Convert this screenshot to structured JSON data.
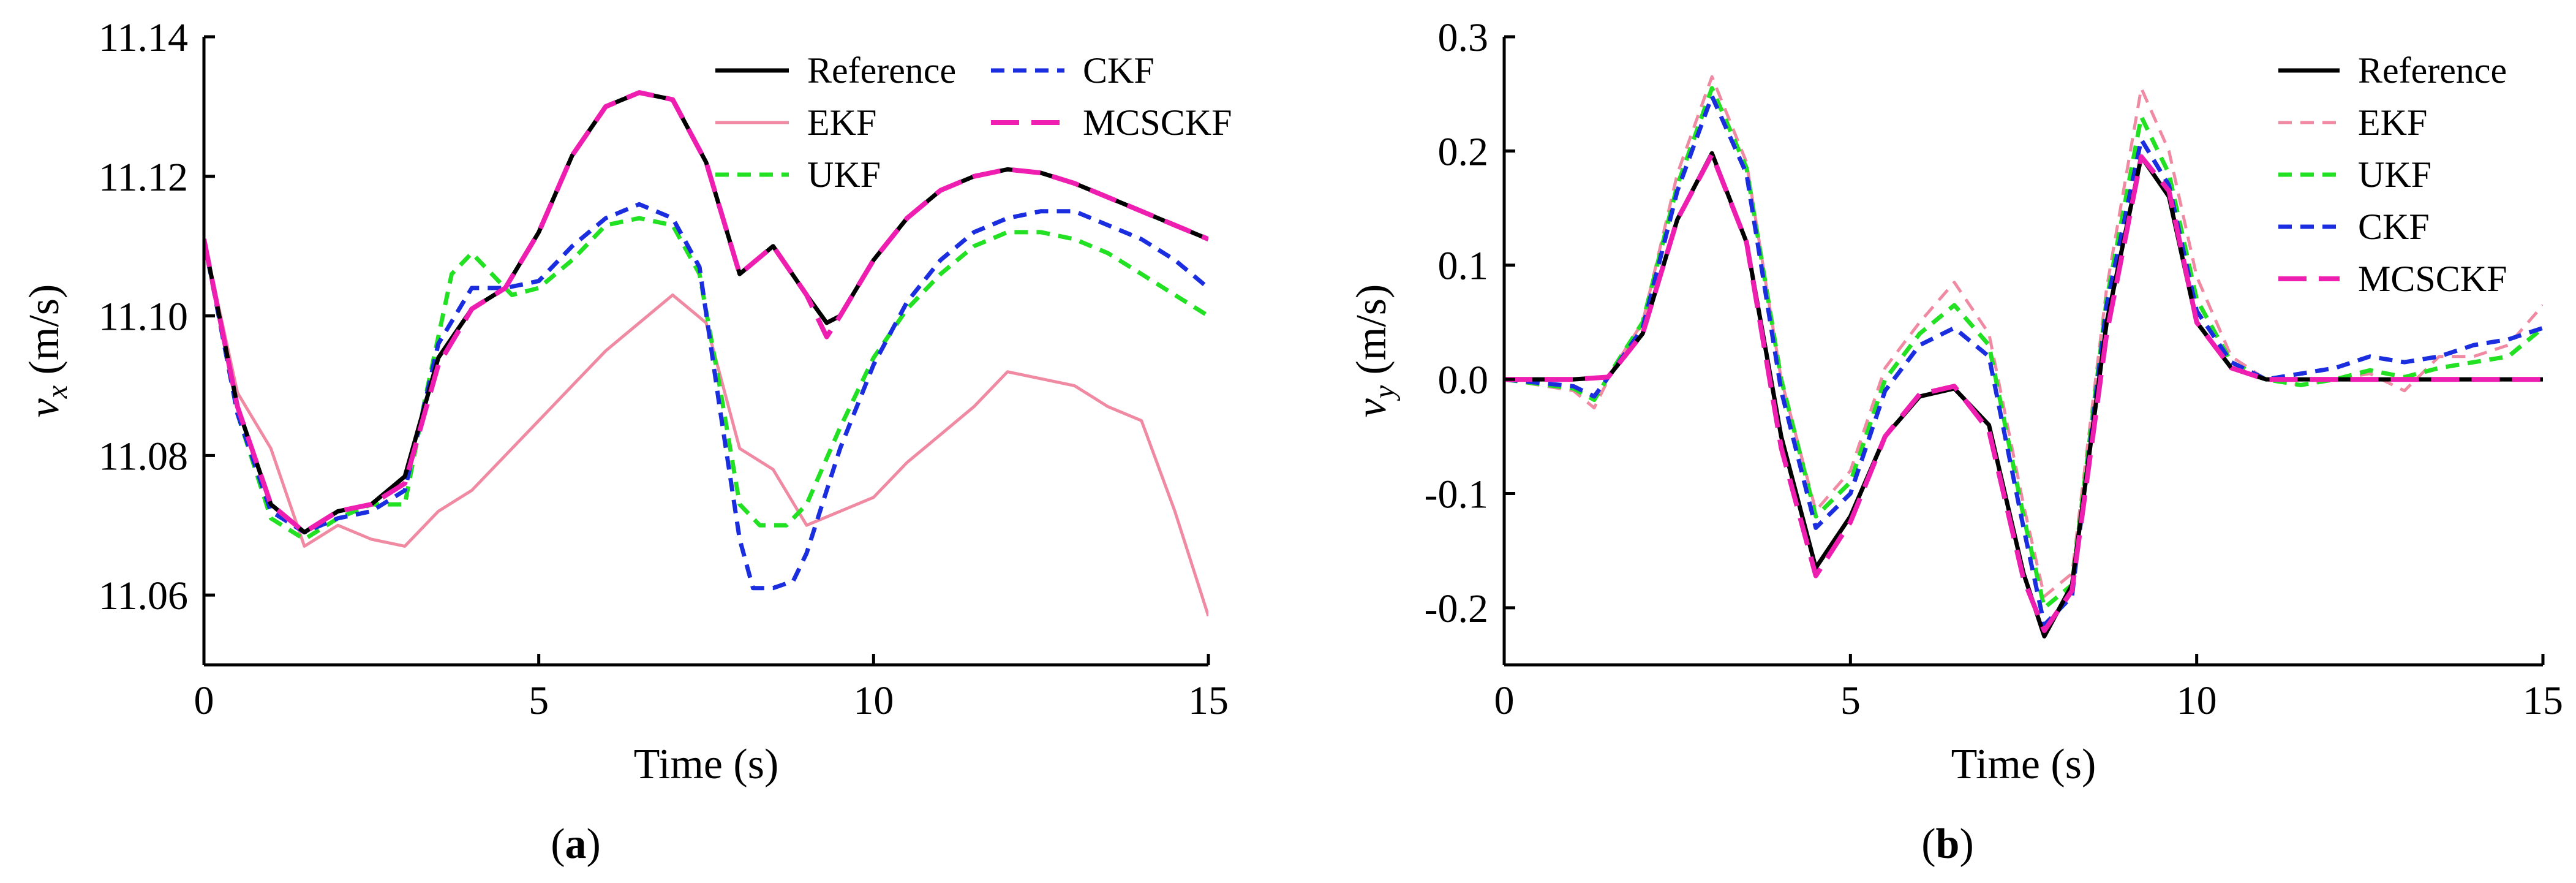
{
  "panels": [
    {
      "label_open": "(",
      "label_letter": "a",
      "label_close": ")"
    },
    {
      "label_open": "(",
      "label_letter": "b",
      "label_close": ")"
    }
  ],
  "colors": {
    "Reference": "#000000",
    "EKF": "#f08aa3",
    "UKF": "#22e022",
    "CKF": "#1a2ee0",
    "MCSCKF": "#ee1fb0"
  },
  "chart_data": [
    {
      "type": "line",
      "xlabel": "Time (s)",
      "ylabel": {
        "var": "v",
        "sub": "x",
        "unit": " (m/s)"
      },
      "xlim": [
        0,
        15
      ],
      "ylim": [
        11.05,
        11.14
      ],
      "xticks": [
        0,
        5,
        10,
        15
      ],
      "yticks": [
        11.06,
        11.08,
        11.1,
        11.12,
        11.14
      ],
      "ytick_labels": [
        "11.06",
        "11.08",
        "11.10",
        "11.12",
        "11.14"
      ],
      "legend": {
        "position": "top-right",
        "columns": 2
      },
      "series": [
        {
          "name": "Reference",
          "style": "solid",
          "x": [
            0,
            0.5,
            1,
            1.5,
            2,
            2.5,
            3,
            3.5,
            4,
            4.5,
            5,
            5.5,
            6,
            6.5,
            7,
            7.5,
            8,
            8.5,
            9,
            9.3,
            9.5,
            10,
            10.5,
            11,
            11.5,
            12,
            12.5,
            13,
            13.5,
            14,
            14.5,
            15
          ],
          "y": [
            11.111,
            11.087,
            11.073,
            11.069,
            11.072,
            11.073,
            11.077,
            11.094,
            11.101,
            11.104,
            11.112,
            11.123,
            11.13,
            11.132,
            11.131,
            11.122,
            11.106,
            11.11,
            11.103,
            11.099,
            11.1,
            11.108,
            11.114,
            11.118,
            11.12,
            11.121,
            11.1205,
            11.119,
            11.117,
            11.115,
            11.113,
            11.111
          ]
        },
        {
          "name": "EKF",
          "style": "solid",
          "x": [
            0,
            0.5,
            1,
            1.5,
            2,
            2.5,
            3,
            3.5,
            4,
            4.5,
            5,
            5.5,
            6,
            6.5,
            7,
            7.5,
            8,
            8.5,
            9,
            9.5,
            10,
            10.5,
            11,
            11.5,
            12,
            12.5,
            13,
            13.5,
            14,
            14.5,
            15
          ],
          "y": [
            11.111,
            11.089,
            11.081,
            11.067,
            11.07,
            11.068,
            11.067,
            11.072,
            11.075,
            11.08,
            11.085,
            11.09,
            11.095,
            11.099,
            11.103,
            11.099,
            11.081,
            11.078,
            11.07,
            11.072,
            11.074,
            11.079,
            11.083,
            11.087,
            11.092,
            11.091,
            11.09,
            11.087,
            11.085,
            11.072,
            11.057
          ]
        },
        {
          "name": "UKF",
          "style": "dash",
          "x": [
            0,
            0.5,
            1,
            1.5,
            2,
            2.5,
            3,
            3.3,
            3.7,
            4,
            4.3,
            4.6,
            5,
            5.5,
            6,
            6.5,
            7,
            7.4,
            7.7,
            8,
            8.3,
            8.7,
            9,
            9.5,
            10,
            10.5,
            11,
            11.5,
            12,
            12.5,
            13,
            13.5,
            14,
            14.5,
            15
          ],
          "y": [
            11.111,
            11.086,
            11.071,
            11.068,
            11.071,
            11.073,
            11.073,
            11.088,
            11.106,
            11.109,
            11.106,
            11.103,
            11.104,
            11.108,
            11.113,
            11.114,
            11.113,
            11.106,
            11.09,
            11.073,
            11.07,
            11.07,
            11.073,
            11.084,
            11.094,
            11.101,
            11.106,
            11.11,
            11.112,
            11.112,
            11.111,
            11.109,
            11.106,
            11.103,
            11.1
          ]
        },
        {
          "name": "CKF",
          "style": "dash",
          "x": [
            0,
            0.5,
            1,
            1.5,
            2,
            2.5,
            3,
            3.5,
            4,
            4.5,
            5,
            5.5,
            6,
            6.5,
            7,
            7.4,
            7.7,
            8,
            8.2,
            8.5,
            8.8,
            9,
            9.5,
            10,
            10.5,
            11,
            11.5,
            12,
            12.5,
            13,
            13.5,
            14,
            14.5,
            15
          ],
          "y": [
            11.111,
            11.086,
            11.072,
            11.069,
            11.071,
            11.072,
            11.075,
            11.096,
            11.104,
            11.104,
            11.105,
            11.11,
            11.114,
            11.116,
            11.114,
            11.107,
            11.087,
            11.068,
            11.061,
            11.061,
            11.062,
            11.066,
            11.081,
            11.093,
            11.102,
            11.108,
            11.112,
            11.114,
            11.115,
            11.115,
            11.113,
            11.111,
            11.108,
            11.104
          ]
        },
        {
          "name": "MCSCKF",
          "style": "longdash",
          "x": [
            0,
            0.5,
            1,
            1.5,
            2,
            2.5,
            3,
            3.5,
            4,
            4.5,
            5,
            5.5,
            6,
            6.5,
            7,
            7.5,
            8,
            8.5,
            9,
            9.3,
            9.5,
            10,
            10.5,
            11,
            11.5,
            12,
            12.5,
            13,
            13.5,
            14,
            14.5,
            15
          ],
          "y": [
            11.111,
            11.087,
            11.073,
            11.069,
            11.072,
            11.073,
            11.076,
            11.093,
            11.101,
            11.104,
            11.112,
            11.123,
            11.13,
            11.132,
            11.131,
            11.122,
            11.106,
            11.11,
            11.103,
            11.097,
            11.1,
            11.108,
            11.114,
            11.118,
            11.12,
            11.121,
            11.1205,
            11.119,
            11.117,
            11.115,
            11.113,
            11.111
          ]
        }
      ]
    },
    {
      "type": "line",
      "xlabel": "Time (s)",
      "ylabel": {
        "var": "v",
        "sub": "y",
        "unit": " (m/s)"
      },
      "xlim": [
        0,
        15
      ],
      "ylim": [
        -0.25,
        0.3
      ],
      "xticks": [
        0,
        5,
        10,
        15
      ],
      "yticks": [
        -0.2,
        -0.1,
        0.0,
        0.1,
        0.2,
        0.3
      ],
      "ytick_labels": [
        "-0.2",
        "-0.1",
        "0.0",
        "0.1",
        "0.2",
        "0.3"
      ],
      "legend": {
        "position": "top-right",
        "columns": 1
      },
      "series": [
        {
          "name": "Reference",
          "style": "solid",
          "x": [
            0,
            1,
            1.5,
            2,
            2.5,
            3,
            3.5,
            4,
            4.5,
            5,
            5.5,
            6,
            6.5,
            7,
            7.5,
            7.8,
            8.2,
            8.7,
            9.2,
            9.6,
            10,
            10.5,
            11,
            12,
            13,
            14,
            15
          ],
          "y": [
            0,
            0,
            0.002,
            0.04,
            0.14,
            0.198,
            0.12,
            -0.05,
            -0.165,
            -0.12,
            -0.05,
            -0.015,
            -0.008,
            -0.04,
            -0.17,
            -0.225,
            -0.18,
            0.05,
            0.195,
            0.16,
            0.05,
            0.01,
            0.0,
            0.0,
            0.0,
            0.0,
            0.0
          ]
        },
        {
          "name": "EKF",
          "style": "dash",
          "x": [
            0,
            1,
            1.3,
            1.6,
            2,
            2.5,
            3,
            3.5,
            4,
            4.5,
            5,
            5.5,
            6,
            6.5,
            7,
            7.5,
            7.8,
            8.2,
            8.7,
            9.2,
            9.6,
            10,
            10.5,
            11,
            11.5,
            12,
            12.5,
            13,
            13.5,
            14,
            14.5,
            15
          ],
          "y": [
            0,
            -0.01,
            -0.025,
            0.012,
            0.05,
            0.18,
            0.265,
            0.19,
            0.0,
            -0.115,
            -0.08,
            0.01,
            0.05,
            0.085,
            0.04,
            -0.11,
            -0.19,
            -0.17,
            0.08,
            0.255,
            0.2,
            0.09,
            0.02,
            0.0,
            -0.005,
            0.0,
            0.005,
            -0.01,
            0.02,
            0.02,
            0.03,
            0.065
          ]
        },
        {
          "name": "UKF",
          "style": "dash",
          "x": [
            0,
            1,
            1.3,
            1.6,
            2,
            2.5,
            3,
            3.5,
            4,
            4.5,
            5,
            5.5,
            6,
            6.5,
            7,
            7.5,
            7.8,
            8.2,
            8.7,
            9.2,
            9.6,
            10,
            10.5,
            11,
            11.5,
            12,
            12.5,
            13,
            13.5,
            14,
            14.5,
            15
          ],
          "y": [
            0,
            -0.008,
            -0.018,
            0.012,
            0.05,
            0.17,
            0.255,
            0.185,
            0.0,
            -0.12,
            -0.09,
            0.0,
            0.04,
            0.065,
            0.03,
            -0.12,
            -0.2,
            -0.18,
            0.07,
            0.23,
            0.18,
            0.07,
            0.015,
            0.0,
            -0.005,
            0.0,
            0.008,
            0.002,
            0.01,
            0.015,
            0.02,
            0.045
          ]
        },
        {
          "name": "CKF",
          "style": "dash",
          "x": [
            0,
            1,
            1.3,
            1.6,
            2,
            2.5,
            3,
            3.5,
            4,
            4.5,
            5,
            5.5,
            6,
            6.5,
            7,
            7.5,
            7.8,
            8.2,
            8.7,
            9.2,
            9.6,
            10,
            10.5,
            11,
            11.5,
            12,
            12.5,
            13,
            13.5,
            14,
            14.5,
            15
          ],
          "y": [
            0,
            -0.006,
            -0.015,
            0.01,
            0.045,
            0.165,
            0.248,
            0.18,
            -0.01,
            -0.13,
            -0.1,
            -0.01,
            0.03,
            0.045,
            0.02,
            -0.13,
            -0.215,
            -0.19,
            0.065,
            0.21,
            0.17,
            0.06,
            0.015,
            0.0,
            0.005,
            0.01,
            0.02,
            0.015,
            0.02,
            0.03,
            0.035,
            0.045
          ]
        },
        {
          "name": "MCSCKF",
          "style": "longdash",
          "x": [
            0,
            1,
            1.5,
            2,
            2.5,
            3,
            3.5,
            4,
            4.5,
            5,
            5.5,
            6,
            6.5,
            7,
            7.5,
            7.8,
            8.2,
            8.7,
            9.2,
            9.6,
            10,
            10.5,
            11,
            12,
            13,
            14,
            15
          ],
          "y": [
            0,
            0,
            0.002,
            0.04,
            0.14,
            0.197,
            0.12,
            -0.06,
            -0.172,
            -0.125,
            -0.05,
            -0.013,
            -0.006,
            -0.045,
            -0.175,
            -0.22,
            -0.185,
            0.04,
            0.195,
            0.165,
            0.05,
            0.01,
            0.0,
            0.0,
            0.0,
            0.0,
            0.0
          ]
        }
      ]
    }
  ]
}
